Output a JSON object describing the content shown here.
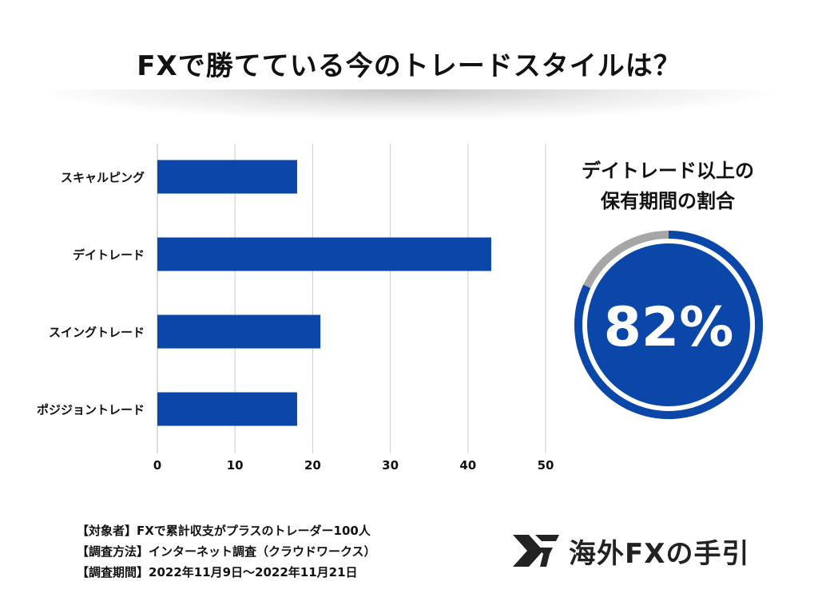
{
  "header": {
    "title": "FXで勝てている今のトレードスタイルは？"
  },
  "chart_data": [
    {
      "type": "bar",
      "orientation": "horizontal",
      "categories": [
        "スキャルピング",
        "デイトレード",
        "スイングトレード",
        "ポジジョントレード"
      ],
      "values": [
        18,
        43,
        21,
        18
      ],
      "xlim": [
        0,
        50
      ],
      "xticks": [
        "0",
        "10",
        "20",
        "30",
        "40",
        "50"
      ],
      "grid": true,
      "color": "#0a47a9",
      "title": "",
      "xlabel": "",
      "ylabel": ""
    },
    {
      "type": "pie",
      "variant": "donut",
      "title_lines": [
        "デイトレード以上の",
        "保有期間の割合"
      ],
      "value_percent": 82,
      "label": "82%",
      "colors": {
        "value": "#0a47a9",
        "rest": "#a6a6a6"
      }
    }
  ],
  "footer": {
    "notes": [
      "【対象者】FXで累計収支がプラスのトレーダー100人",
      "【調査方法】インターネット調査（クラウドワークス）",
      "【調査期間】2022年11月9日〜2022年11月21日"
    ]
  },
  "brand": {
    "name": "海外FXの手引",
    "icon": "fx-logo-icon",
    "color": "#222222"
  }
}
